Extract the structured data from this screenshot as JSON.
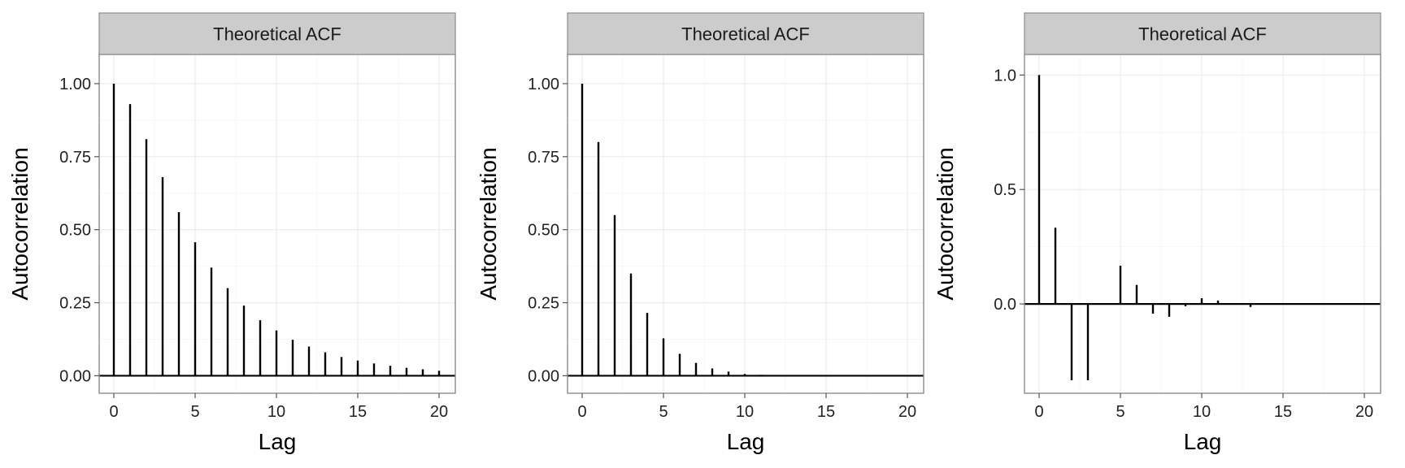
{
  "chart_data": [
    {
      "type": "bar",
      "strip_title": "Theoretical ACF",
      "xlabel": "Lag",
      "ylabel": "Autocorrelation",
      "xlim": [
        -0.9,
        21
      ],
      "ylim": [
        -0.06,
        1.1
      ],
      "xticks": [
        0,
        5,
        10,
        15,
        20
      ],
      "yticks": [
        0,
        0.25,
        0.5,
        0.75,
        1
      ],
      "ytick_labels": [
        "0.00",
        "0.25",
        "0.50",
        "0.75",
        "1.00"
      ],
      "grid": true,
      "x": [
        0,
        1,
        2,
        3,
        4,
        5,
        6,
        7,
        8,
        9,
        10,
        11,
        12,
        13,
        14,
        15,
        16,
        17,
        18,
        19,
        20
      ],
      "values": [
        1.0,
        0.93,
        0.81,
        0.68,
        0.56,
        0.457,
        0.37,
        0.3,
        0.24,
        0.19,
        0.155,
        0.123,
        0.1,
        0.08,
        0.064,
        0.052,
        0.042,
        0.034,
        0.027,
        0.022,
        0.017
      ]
    },
    {
      "type": "bar",
      "strip_title": "Theoretical ACF",
      "xlabel": "Lag",
      "ylabel": "Autocorrelation",
      "xlim": [
        -0.9,
        21
      ],
      "ylim": [
        -0.06,
        1.1
      ],
      "xticks": [
        0,
        5,
        10,
        15,
        20
      ],
      "yticks": [
        0,
        0.25,
        0.5,
        0.75,
        1
      ],
      "ytick_labels": [
        "0.00",
        "0.25",
        "0.50",
        "0.75",
        "1.00"
      ],
      "grid": true,
      "x": [
        0,
        1,
        2,
        3,
        4,
        5,
        6,
        7,
        8,
        9,
        10,
        11,
        12,
        13,
        14,
        15,
        16,
        17,
        18,
        19,
        20
      ],
      "values": [
        1.0,
        0.8,
        0.55,
        0.35,
        0.215,
        0.128,
        0.075,
        0.044,
        0.025,
        0.014,
        0.006,
        0.003,
        0.002,
        0.001,
        0.0005,
        0.0002,
        0.0001,
        0.0001,
        0,
        0,
        0
      ]
    },
    {
      "type": "bar",
      "strip_title": "Theoretical ACF",
      "xlabel": "Lag",
      "ylabel": "Autocorrelation",
      "xlim": [
        -0.9,
        21
      ],
      "ylim": [
        -0.39,
        1.09
      ],
      "xticks": [
        0,
        5,
        10,
        15,
        20
      ],
      "yticks": [
        0,
        0.5,
        1
      ],
      "ytick_labels": [
        "0.0",
        "0.5",
        "1.0"
      ],
      "grid": true,
      "x": [
        0,
        1,
        2,
        3,
        4,
        5,
        6,
        7,
        8,
        9,
        10,
        11,
        12,
        13,
        14,
        15,
        16,
        17,
        18,
        19,
        20
      ],
      "values": [
        1.0,
        0.333,
        -0.333,
        -0.333,
        0,
        0.167,
        0.083,
        -0.042,
        -0.056,
        -0.01,
        0.025,
        0.015,
        0,
        -0.013,
        0,
        0,
        0,
        0,
        0,
        0,
        0
      ]
    }
  ]
}
